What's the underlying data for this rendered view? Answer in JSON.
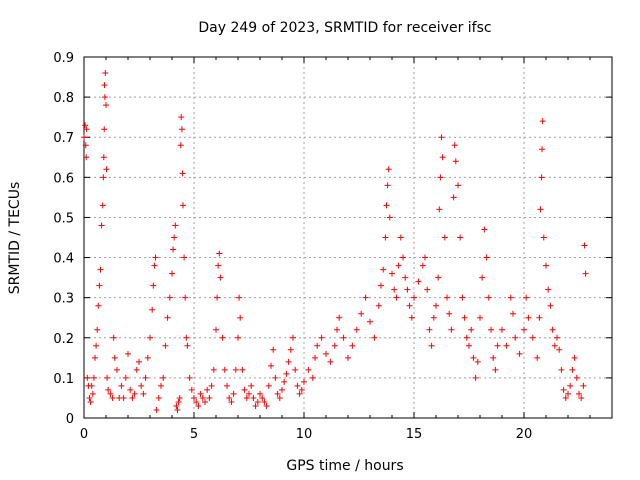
{
  "chart_data": {
    "type": "scatter",
    "title": "Day 249 of 2023, SRMTID for receiver ifsc",
    "xlabel": "GPS time / hours",
    "ylabel": "SRMTID / TECUs",
    "xlim": [
      0,
      24
    ],
    "ylim": [
      0,
      0.9
    ],
    "xticks": [
      0,
      5,
      10,
      15,
      20
    ],
    "xtick_labels": [
      "0",
      "5",
      "10",
      "15",
      "20"
    ],
    "yticks": [
      0,
      0.1,
      0.2,
      0.3,
      0.4,
      0.5,
      0.6,
      0.7,
      0.8,
      0.9
    ],
    "ytick_labels": [
      "0",
      "0.1",
      "0.2",
      "0.3",
      "0.4",
      "0.5",
      "0.6",
      "0.7",
      "0.8",
      "0.9"
    ],
    "grid": true,
    "marker": "+",
    "color": "#ff0000",
    "series": [
      {
        "name": "SRMTID",
        "points": [
          [
            0.0,
            0.7
          ],
          [
            0.05,
            0.73
          ],
          [
            0.08,
            0.68
          ],
          [
            0.1,
            0.65
          ],
          [
            0.12,
            0.72
          ],
          [
            0.15,
            0.1
          ],
          [
            0.2,
            0.08
          ],
          [
            0.25,
            0.05
          ],
          [
            0.3,
            0.04
          ],
          [
            0.35,
            0.08
          ],
          [
            0.4,
            0.06
          ],
          [
            0.45,
            0.1
          ],
          [
            0.5,
            0.15
          ],
          [
            0.55,
            0.18
          ],
          [
            0.6,
            0.22
          ],
          [
            0.65,
            0.28
          ],
          [
            0.7,
            0.33
          ],
          [
            0.75,
            0.37
          ],
          [
            0.8,
            0.48
          ],
          [
            0.85,
            0.53
          ],
          [
            0.88,
            0.6
          ],
          [
            0.9,
            0.65
          ],
          [
            0.92,
            0.72
          ],
          [
            0.95,
            0.8
          ],
          [
            0.97,
            0.86
          ],
          [
            1.0,
            0.78
          ],
          [
            0.93,
            0.83
          ],
          [
            1.02,
            0.62
          ],
          [
            1.05,
            0.1
          ],
          [
            1.1,
            0.07
          ],
          [
            1.2,
            0.06
          ],
          [
            1.3,
            0.05
          ],
          [
            1.35,
            0.2
          ],
          [
            1.4,
            0.15
          ],
          [
            1.5,
            0.12
          ],
          [
            1.6,
            0.05
          ],
          [
            1.7,
            0.08
          ],
          [
            1.8,
            0.05
          ],
          [
            1.9,
            0.1
          ],
          [
            2.0,
            0.16
          ],
          [
            2.1,
            0.07
          ],
          [
            2.2,
            0.05
          ],
          [
            2.3,
            0.06
          ],
          [
            2.4,
            0.12
          ],
          [
            2.5,
            0.14
          ],
          [
            2.6,
            0.08
          ],
          [
            2.7,
            0.06
          ],
          [
            2.8,
            0.1
          ],
          [
            2.9,
            0.15
          ],
          [
            3.0,
            0.2
          ],
          [
            3.1,
            0.27
          ],
          [
            3.15,
            0.33
          ],
          [
            3.2,
            0.38
          ],
          [
            3.25,
            0.4
          ],
          [
            3.3,
            0.02
          ],
          [
            3.4,
            0.05
          ],
          [
            3.5,
            0.08
          ],
          [
            3.6,
            0.1
          ],
          [
            3.7,
            0.18
          ],
          [
            3.8,
            0.25
          ],
          [
            3.9,
            0.3
          ],
          [
            4.0,
            0.36
          ],
          [
            4.05,
            0.42
          ],
          [
            4.1,
            0.45
          ],
          [
            4.15,
            0.48
          ],
          [
            4.2,
            0.03
          ],
          [
            4.25,
            0.02
          ],
          [
            4.3,
            0.04
          ],
          [
            4.35,
            0.05
          ],
          [
            4.4,
            0.68
          ],
          [
            4.42,
            0.75
          ],
          [
            4.45,
            0.72
          ],
          [
            4.48,
            0.61
          ],
          [
            4.5,
            0.53
          ],
          [
            4.55,
            0.4
          ],
          [
            4.6,
            0.3
          ],
          [
            4.65,
            0.2
          ],
          [
            4.7,
            0.18
          ],
          [
            4.8,
            0.1
          ],
          [
            4.9,
            0.07
          ],
          [
            5.0,
            0.05
          ],
          [
            5.1,
            0.04
          ],
          [
            5.2,
            0.03
          ],
          [
            5.3,
            0.06
          ],
          [
            5.4,
            0.05
          ],
          [
            5.5,
            0.04
          ],
          [
            5.6,
            0.07
          ],
          [
            5.7,
            0.05
          ],
          [
            5.8,
            0.08
          ],
          [
            5.9,
            0.12
          ],
          [
            6.0,
            0.22
          ],
          [
            6.05,
            0.3
          ],
          [
            6.1,
            0.38
          ],
          [
            6.15,
            0.41
          ],
          [
            6.2,
            0.35
          ],
          [
            6.3,
            0.2
          ],
          [
            6.4,
            0.12
          ],
          [
            6.5,
            0.08
          ],
          [
            6.6,
            0.05
          ],
          [
            6.7,
            0.04
          ],
          [
            6.8,
            0.06
          ],
          [
            6.9,
            0.12
          ],
          [
            7.0,
            0.2
          ],
          [
            7.05,
            0.3
          ],
          [
            7.1,
            0.25
          ],
          [
            7.2,
            0.12
          ],
          [
            7.3,
            0.07
          ],
          [
            7.4,
            0.05
          ],
          [
            7.5,
            0.06
          ],
          [
            7.6,
            0.08
          ],
          [
            7.7,
            0.05
          ],
          [
            7.8,
            0.03
          ],
          [
            7.9,
            0.04
          ],
          [
            8.0,
            0.06
          ],
          [
            8.1,
            0.05
          ],
          [
            8.2,
            0.04
          ],
          [
            8.3,
            0.03
          ],
          [
            8.4,
            0.08
          ],
          [
            8.5,
            0.13
          ],
          [
            8.6,
            0.17
          ],
          [
            8.7,
            0.1
          ],
          [
            8.8,
            0.06
          ],
          [
            8.9,
            0.05
          ],
          [
            9.0,
            0.07
          ],
          [
            9.1,
            0.09
          ],
          [
            9.2,
            0.11
          ],
          [
            9.3,
            0.14
          ],
          [
            9.4,
            0.17
          ],
          [
            9.5,
            0.2
          ],
          [
            9.6,
            0.12
          ],
          [
            9.7,
            0.08
          ],
          [
            9.8,
            0.06
          ],
          [
            9.9,
            0.07
          ],
          [
            10.0,
            0.09
          ],
          [
            10.2,
            0.12
          ],
          [
            10.4,
            0.1
          ],
          [
            10.5,
            0.15
          ],
          [
            10.6,
            0.18
          ],
          [
            10.8,
            0.2
          ],
          [
            11.0,
            0.16
          ],
          [
            11.2,
            0.14
          ],
          [
            11.4,
            0.18
          ],
          [
            11.5,
            0.22
          ],
          [
            11.6,
            0.25
          ],
          [
            11.8,
            0.2
          ],
          [
            12.0,
            0.15
          ],
          [
            12.2,
            0.18
          ],
          [
            12.4,
            0.22
          ],
          [
            12.6,
            0.26
          ],
          [
            12.8,
            0.3
          ],
          [
            13.0,
            0.24
          ],
          [
            13.2,
            0.2
          ],
          [
            13.4,
            0.28
          ],
          [
            13.5,
            0.33
          ],
          [
            13.6,
            0.37
          ],
          [
            13.7,
            0.45
          ],
          [
            13.75,
            0.53
          ],
          [
            13.8,
            0.58
          ],
          [
            13.85,
            0.62
          ],
          [
            13.9,
            0.5
          ],
          [
            14.0,
            0.36
          ],
          [
            14.1,
            0.32
          ],
          [
            14.2,
            0.3
          ],
          [
            14.3,
            0.38
          ],
          [
            14.4,
            0.45
          ],
          [
            14.5,
            0.4
          ],
          [
            14.6,
            0.35
          ],
          [
            14.7,
            0.32
          ],
          [
            14.8,
            0.28
          ],
          [
            14.9,
            0.25
          ],
          [
            15.0,
            0.3
          ],
          [
            15.2,
            0.34
          ],
          [
            15.4,
            0.38
          ],
          [
            15.5,
            0.4
          ],
          [
            15.6,
            0.32
          ],
          [
            15.7,
            0.22
          ],
          [
            15.8,
            0.18
          ],
          [
            15.9,
            0.25
          ],
          [
            16.0,
            0.28
          ],
          [
            16.1,
            0.35
          ],
          [
            16.15,
            0.52
          ],
          [
            16.2,
            0.6
          ],
          [
            16.25,
            0.7
          ],
          [
            16.3,
            0.65
          ],
          [
            16.4,
            0.45
          ],
          [
            16.5,
            0.3
          ],
          [
            16.6,
            0.26
          ],
          [
            16.7,
            0.22
          ],
          [
            16.8,
            0.55
          ],
          [
            16.85,
            0.68
          ],
          [
            16.9,
            0.64
          ],
          [
            17.0,
            0.58
          ],
          [
            17.1,
            0.45
          ],
          [
            17.2,
            0.3
          ],
          [
            17.3,
            0.25
          ],
          [
            17.4,
            0.2
          ],
          [
            17.5,
            0.18
          ],
          [
            17.6,
            0.22
          ],
          [
            17.7,
            0.15
          ],
          [
            17.8,
            0.1
          ],
          [
            17.9,
            0.14
          ],
          [
            18.0,
            0.25
          ],
          [
            18.1,
            0.35
          ],
          [
            18.2,
            0.47
          ],
          [
            18.3,
            0.4
          ],
          [
            18.4,
            0.3
          ],
          [
            18.5,
            0.22
          ],
          [
            18.6,
            0.15
          ],
          [
            18.7,
            0.12
          ],
          [
            18.8,
            0.18
          ],
          [
            19.0,
            0.22
          ],
          [
            19.2,
            0.18
          ],
          [
            19.4,
            0.3
          ],
          [
            19.5,
            0.26
          ],
          [
            19.6,
            0.2
          ],
          [
            19.8,
            0.16
          ],
          [
            20.0,
            0.22
          ],
          [
            20.1,
            0.3
          ],
          [
            20.2,
            0.25
          ],
          [
            20.4,
            0.2
          ],
          [
            20.6,
            0.15
          ],
          [
            20.7,
            0.25
          ],
          [
            20.75,
            0.52
          ],
          [
            20.8,
            0.6
          ],
          [
            20.82,
            0.67
          ],
          [
            20.85,
            0.74
          ],
          [
            20.9,
            0.45
          ],
          [
            21.0,
            0.38
          ],
          [
            21.1,
            0.32
          ],
          [
            21.2,
            0.28
          ],
          [
            21.3,
            0.22
          ],
          [
            21.4,
            0.18
          ],
          [
            21.5,
            0.2
          ],
          [
            21.6,
            0.17
          ],
          [
            21.7,
            0.12
          ],
          [
            21.8,
            0.07
          ],
          [
            21.9,
            0.05
          ],
          [
            22.0,
            0.06
          ],
          [
            22.1,
            0.08
          ],
          [
            22.2,
            0.12
          ],
          [
            22.3,
            0.15
          ],
          [
            22.4,
            0.1
          ],
          [
            22.5,
            0.06
          ],
          [
            22.6,
            0.05
          ],
          [
            22.7,
            0.08
          ],
          [
            22.75,
            0.43
          ],
          [
            22.8,
            0.36
          ]
        ]
      }
    ]
  }
}
